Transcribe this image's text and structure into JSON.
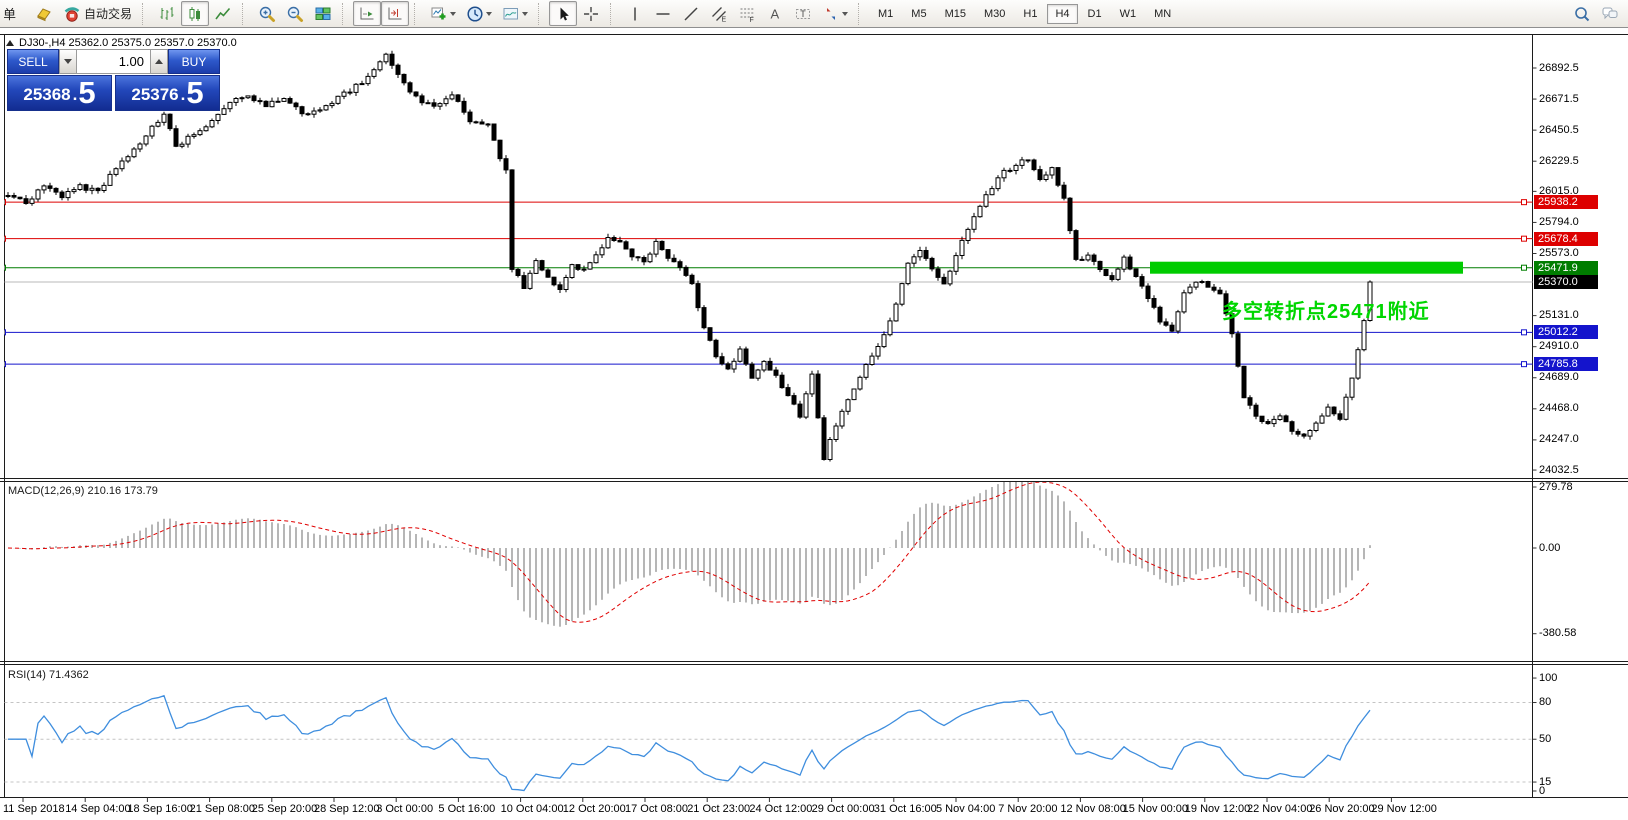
{
  "toolbar": {
    "new_order_label": "订单",
    "auto_trading_label": "自动交易",
    "timeframes": [
      "M1",
      "M5",
      "M15",
      "M30",
      "H1",
      "H4",
      "D1",
      "W1",
      "MN"
    ],
    "active_timeframe": "H4",
    "icon_names": [
      "orders-book",
      "auto-trading",
      "bar-chart",
      "candlestick-chart",
      "line-chart",
      "zoom-in",
      "zoom-out",
      "tile-windows",
      "auto-scroll",
      "chart-shift",
      "indicators-add",
      "periods-clock",
      "chart-templates",
      "cursor",
      "crosshair",
      "vertical-line",
      "horizontal-line",
      "trendline",
      "equidistant-channel",
      "fibonacci-retracement",
      "text",
      "text-label",
      "arrows",
      "search",
      "chat"
    ]
  },
  "chart": {
    "title": "DJ30-,H4  25362.0 25375.0 25357.0 25370.0",
    "trade_panel": {
      "sell_label": "SELL",
      "buy_label": "BUY",
      "volume": "1.00",
      "sell_price": "25368",
      "sell_frac": "5",
      "buy_price": "25376",
      "buy_frac": "5"
    },
    "annotation": "多空转折点25471附近",
    "price_axis_labels": [
      "26892.5",
      "26671.5",
      "26450.5",
      "26229.5",
      "26015.0",
      "25794.0",
      "25573.0",
      "25131.0",
      "24910.0",
      "24689.0",
      "24468.0",
      "24247.0",
      "24032.5"
    ],
    "level_lines": [
      {
        "price": 25938.2,
        "label": "25938.2",
        "color": "#dd0000"
      },
      {
        "price": 25678.4,
        "label": "25678.4",
        "color": "#dd0000"
      },
      {
        "price": 25471.9,
        "label": "25471.9",
        "color": "#007d00"
      },
      {
        "price": 25012.2,
        "label": "25012.2",
        "color": "#1414cc"
      },
      {
        "price": 24785.8,
        "label": "24785.8",
        "color": "#1414cc"
      }
    ],
    "current_price": {
      "price": 25370.0,
      "label": "25370.0",
      "color": "#000000"
    },
    "highlight_zone": {
      "price": 25471.9,
      "color": "#00cc00"
    }
  },
  "macd": {
    "label": "MACD(12,26,9) 210.16 173.79",
    "axis": [
      "279.78",
      "0.00",
      "-380.58"
    ]
  },
  "rsi": {
    "label": "RSI(14) 71.4362",
    "axis": [
      "100",
      "80",
      "50",
      "15",
      "0"
    ],
    "levels": [
      80,
      50,
      15
    ]
  },
  "time_axis": [
    "11 Sep 2018",
    "14 Sep 04:00",
    "18 Sep 16:00",
    "21 Sep 08:00",
    "25 Sep 20:00",
    "28 Sep 12:00",
    "3 Oct 00:00",
    "5 Oct 16:00",
    "10 Oct 04:00",
    "12 Oct 20:00",
    "17 Oct 08:00",
    "21 Oct 23:00",
    "24 Oct 12:00",
    "29 Oct 00:00",
    "31 Oct 16:00",
    "5 Nov 04:00",
    "7 Nov 20:00",
    "12 Nov 08:00",
    "15 Nov 00:00",
    "19 Nov 12:00",
    "22 Nov 04:00",
    "26 Nov 20:00",
    "29 Nov 12:00"
  ],
  "chart_data": {
    "type": "candlestick",
    "symbol": "DJ30-",
    "timeframe": "H4",
    "ohlc_current": {
      "open": 25362.0,
      "high": 25375.0,
      "low": 25357.0,
      "close": 25370.0
    },
    "bid": 25368.5,
    "ask": 25376.5,
    "y_axis_range": [
      24032.5,
      26892.5
    ],
    "horizontal_levels": [
      25938.2,
      25678.4,
      25471.9,
      25012.2,
      24785.8
    ],
    "candle_count": 228,
    "price_anchors": [
      [
        0,
        26000
      ],
      [
        3,
        25930
      ],
      [
        6,
        26060
      ],
      [
        9,
        25980
      ],
      [
        12,
        26050
      ],
      [
        15,
        26010
      ],
      [
        18,
        26180
      ],
      [
        21,
        26300
      ],
      [
        24,
        26480
      ],
      [
        26,
        26560
      ],
      [
        28,
        26340
      ],
      [
        31,
        26420
      ],
      [
        34,
        26520
      ],
      [
        37,
        26660
      ],
      [
        40,
        26700
      ],
      [
        43,
        26620
      ],
      [
        46,
        26690
      ],
      [
        49,
        26570
      ],
      [
        52,
        26600
      ],
      [
        55,
        26680
      ],
      [
        58,
        26760
      ],
      [
        61,
        26870
      ],
      [
        63,
        26990
      ],
      [
        65,
        26850
      ],
      [
        68,
        26680
      ],
      [
        71,
        26620
      ],
      [
        74,
        26700
      ],
      [
        77,
        26520
      ],
      [
        80,
        26480
      ],
      [
        82,
        26250
      ],
      [
        83,
        26160
      ],
      [
        84,
        25460
      ],
      [
        86,
        25340
      ],
      [
        88,
        25520
      ],
      [
        90,
        25400
      ],
      [
        92,
        25330
      ],
      [
        94,
        25500
      ],
      [
        96,
        25450
      ],
      [
        98,
        25560
      ],
      [
        100,
        25700
      ],
      [
        102,
        25640
      ],
      [
        104,
        25560
      ],
      [
        106,
        25500
      ],
      [
        108,
        25650
      ],
      [
        110,
        25550
      ],
      [
        112,
        25480
      ],
      [
        114,
        25350
      ],
      [
        116,
        25050
      ],
      [
        118,
        24850
      ],
      [
        120,
        24750
      ],
      [
        122,
        24880
      ],
      [
        124,
        24680
      ],
      [
        126,
        24820
      ],
      [
        128,
        24700
      ],
      [
        130,
        24550
      ],
      [
        132,
        24420
      ],
      [
        134,
        24700
      ],
      [
        136,
        24120
      ],
      [
        138,
        24350
      ],
      [
        140,
        24550
      ],
      [
        142,
        24700
      ],
      [
        144,
        24850
      ],
      [
        146,
        25000
      ],
      [
        148,
        25200
      ],
      [
        150,
        25500
      ],
      [
        152,
        25600
      ],
      [
        154,
        25450
      ],
      [
        156,
        25350
      ],
      [
        158,
        25550
      ],
      [
        160,
        25750
      ],
      [
        162,
        25900
      ],
      [
        164,
        26050
      ],
      [
        166,
        26150
      ],
      [
        168,
        26200
      ],
      [
        170,
        26250
      ],
      [
        172,
        26100
      ],
      [
        174,
        26180
      ],
      [
        176,
        25950
      ],
      [
        178,
        25520
      ],
      [
        180,
        25560
      ],
      [
        182,
        25460
      ],
      [
        184,
        25380
      ],
      [
        186,
        25550
      ],
      [
        188,
        25400
      ],
      [
        190,
        25250
      ],
      [
        192,
        25100
      ],
      [
        194,
        25030
      ],
      [
        196,
        25300
      ],
      [
        198,
        25380
      ],
      [
        200,
        25350
      ],
      [
        202,
        25300
      ],
      [
        204,
        25000
      ],
      [
        206,
        24550
      ],
      [
        208,
        24420
      ],
      [
        210,
        24350
      ],
      [
        212,
        24420
      ],
      [
        214,
        24300
      ],
      [
        216,
        24260
      ],
      [
        218,
        24350
      ],
      [
        220,
        24480
      ],
      [
        222,
        24400
      ],
      [
        224,
        24700
      ],
      [
        226,
        25100
      ],
      [
        227,
        25370
      ]
    ],
    "macd": {
      "fast": 12,
      "slow": 26,
      "signal": 9,
      "current_main": 210.16,
      "current_signal": 173.79,
      "axis_range": [
        -380.58,
        279.78
      ]
    },
    "rsi": {
      "period": 14,
      "current": 71.4362,
      "axis_range": [
        0,
        100
      ],
      "levels": [
        80,
        50,
        15
      ]
    }
  }
}
